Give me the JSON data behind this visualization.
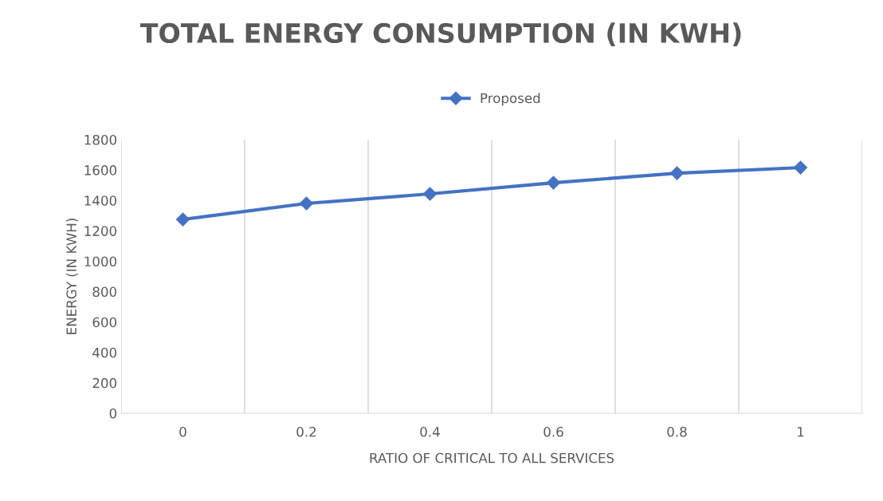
{
  "chart_data": {
    "type": "line",
    "title": "TOTAL ENERGY CONSUMPTION (IN KWH)",
    "xlabel": "RATIO OF CRITICAL TO ALL SERVICES",
    "ylabel": "ENERGY (IN KWH)",
    "categories": [
      "0",
      "0.2",
      "0.4",
      "0.6",
      "0.8",
      "1"
    ],
    "series": [
      {
        "name": "Proposed",
        "color": "#4472c4",
        "values": [
          1275,
          1380,
          1443,
          1516,
          1579,
          1616
        ]
      }
    ],
    "ylim": [
      0,
      1800
    ],
    "yticks": [
      0,
      200,
      400,
      600,
      800,
      1000,
      1200,
      1400,
      1600,
      1800
    ],
    "grid": "x",
    "legend": "top",
    "marker": "diamond",
    "line_style": "solid"
  }
}
